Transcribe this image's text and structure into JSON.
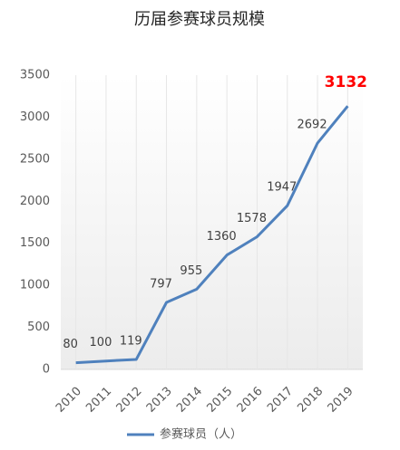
{
  "chart_data": {
    "type": "line",
    "title": "历届参赛球员规模",
    "categories": [
      "2010",
      "2011",
      "2012",
      "2013",
      "2014",
      "2015",
      "2016",
      "2017",
      "2018",
      "2019"
    ],
    "series": [
      {
        "name": "参赛球员（人）",
        "color": "#4f81bd",
        "values": [
          80,
          100,
          119,
          797,
          955,
          1360,
          1578,
          1947,
          2692,
          3132
        ],
        "value_label_colors": [
          "#404040",
          "#404040",
          "#404040",
          "#404040",
          "#404040",
          "#404040",
          "#404040",
          "#404040",
          "#404040",
          "#ff0000"
        ]
      }
    ],
    "ylim": [
      0,
      3500
    ],
    "yticks": [
      0,
      500,
      1000,
      1500,
      2000,
      2500,
      3000,
      3500
    ],
    "grid": true,
    "legend": "bottom"
  }
}
